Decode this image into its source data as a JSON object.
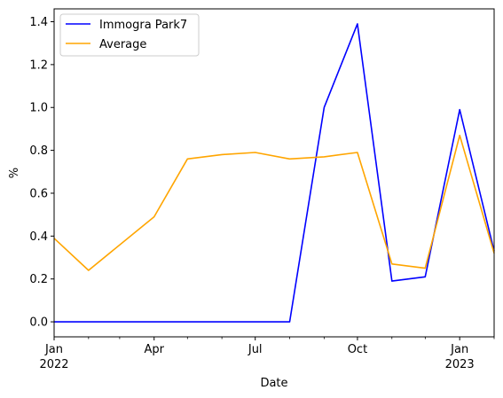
{
  "chart_data": {
    "type": "line",
    "xlabel": "Date",
    "ylabel": "%",
    "x_ticks_major": [
      {
        "date": "2022-01-01",
        "label": "Jan",
        "sublabel": "2022"
      },
      {
        "date": "2022-04-01",
        "label": "Apr",
        "sublabel": ""
      },
      {
        "date": "2022-07-01",
        "label": "Jul",
        "sublabel": ""
      },
      {
        "date": "2022-10-01",
        "label": "Oct",
        "sublabel": ""
      },
      {
        "date": "2023-01-01",
        "label": "Jan",
        "sublabel": "2023"
      }
    ],
    "x_ticks_minor": [
      "2022-02-01",
      "2022-03-01",
      "2022-05-01",
      "2022-06-01",
      "2022-08-01",
      "2022-09-01",
      "2022-11-01",
      "2022-12-01",
      "2023-02-01"
    ],
    "xlim": [
      "2022-01-01",
      "2023-02-01"
    ],
    "ylim": [
      -0.07,
      1.46
    ],
    "y_ticks": [
      "0.0",
      "0.2",
      "0.4",
      "0.6",
      "0.8",
      "1.0",
      "1.2",
      "1.4"
    ],
    "legend_position": "top-left",
    "grid": false,
    "series": [
      {
        "name": "Immogra Park7",
        "color": "#0000ff",
        "points": [
          {
            "x": "2022-01-01",
            "y": 0.0
          },
          {
            "x": "2022-02-01",
            "y": 0.0
          },
          {
            "x": "2022-03-01",
            "y": 0.0
          },
          {
            "x": "2022-04-01",
            "y": 0.0
          },
          {
            "x": "2022-05-01",
            "y": 0.0
          },
          {
            "x": "2022-06-01",
            "y": 0.0
          },
          {
            "x": "2022-07-01",
            "y": 0.0
          },
          {
            "x": "2022-08-01",
            "y": 0.0
          },
          {
            "x": "2022-09-01",
            "y": 1.0
          },
          {
            "x": "2022-10-01",
            "y": 1.39
          },
          {
            "x": "2022-11-01",
            "y": 0.19
          },
          {
            "x": "2022-12-01",
            "y": 0.21
          },
          {
            "x": "2023-01-01",
            "y": 0.99
          },
          {
            "x": "2023-02-01",
            "y": 0.33
          }
        ]
      },
      {
        "name": "Average",
        "color": "#ffa500",
        "points": [
          {
            "x": "2022-01-01",
            "y": 0.39
          },
          {
            "x": "2022-02-01",
            "y": 0.24
          },
          {
            "x": "2022-04-01",
            "y": 0.49
          },
          {
            "x": "2022-05-01",
            "y": 0.76
          },
          {
            "x": "2022-06-01",
            "y": 0.78
          },
          {
            "x": "2022-07-01",
            "y": 0.79
          },
          {
            "x": "2022-08-01",
            "y": 0.76
          },
          {
            "x": "2022-09-01",
            "y": 0.77
          },
          {
            "x": "2022-10-01",
            "y": 0.79
          },
          {
            "x": "2022-11-01",
            "y": 0.27
          },
          {
            "x": "2022-12-01",
            "y": 0.25
          },
          {
            "x": "2023-01-01",
            "y": 0.87
          },
          {
            "x": "2023-02-01",
            "y": 0.32
          }
        ]
      }
    ]
  }
}
